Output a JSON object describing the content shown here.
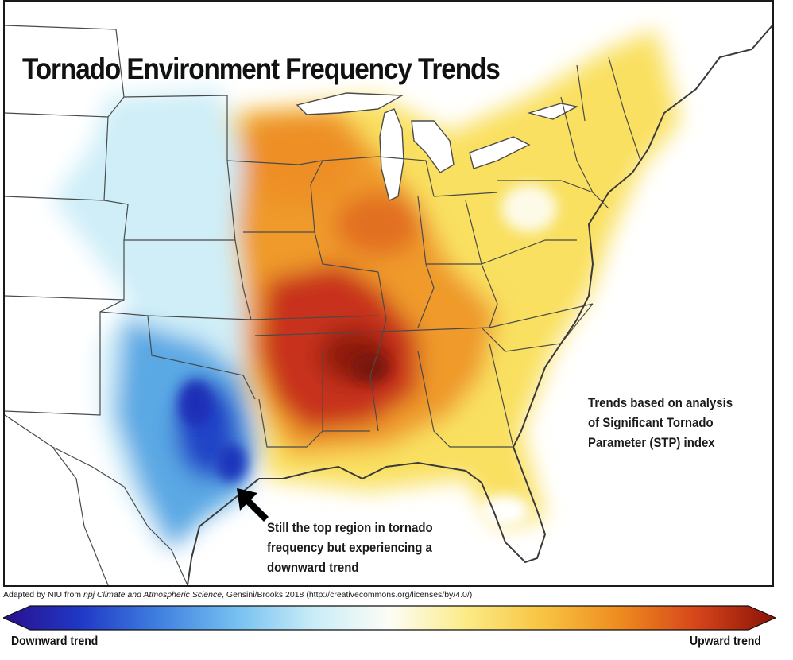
{
  "map": {
    "title": "Tornado Environment Frequency Trends",
    "trend_note": [
      "Trends based on analysis",
      "of Significant Tornado",
      "Parameter (STP) index"
    ],
    "arrow_note": [
      "Still the top region in tornado",
      "frequency but experiencing a",
      "downward trend"
    ],
    "credit": {
      "prefix": "Adapted by NIU from ",
      "journal": "npj Climate and Atmospheric Science",
      "suffix": ", Gensini/Brooks 2018 (http://creativecommons.org/licenses/by/4.0/)"
    },
    "colors": {
      "strong_down": "#1c2fb8",
      "down": "#55a8e6",
      "slight_down": "#cdeef8",
      "neutral": "#fbfbec",
      "slight_up": "#f9e25a",
      "up": "#f0a126",
      "strong_up": "#c42a14",
      "border": "#4a4a4a"
    }
  },
  "legend": {
    "low_label": "Downward trend",
    "high_label": "Upward trend",
    "scale": [
      "#2a0f8c",
      "#2038c6",
      "#3f7fe0",
      "#74bff0",
      "#c8ecf7",
      "#fdfdf6",
      "#fbeb86",
      "#f8c341",
      "#ee8a1f",
      "#d5441a",
      "#8a1206"
    ]
  }
}
